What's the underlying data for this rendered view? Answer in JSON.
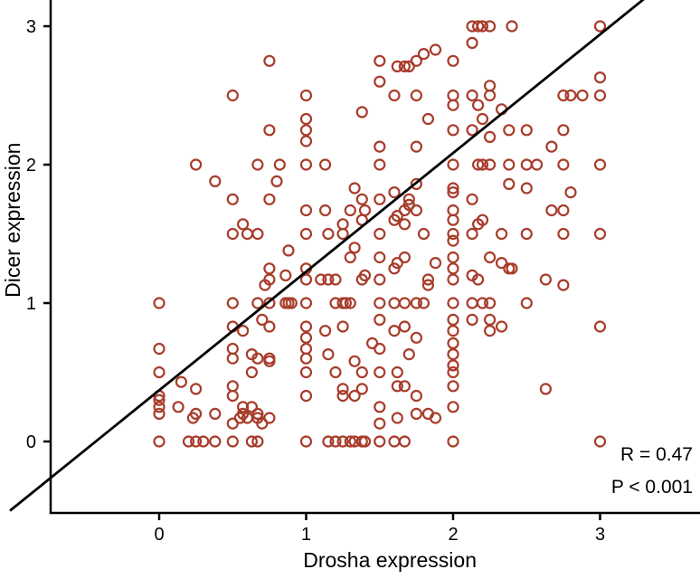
{
  "chart_data": {
    "type": "scatter",
    "title": "",
    "xlabel": "Drosha expression",
    "ylabel": "Dicer expression",
    "xlim": [
      -0.7,
      3.7
    ],
    "ylim": [
      -0.5,
      3.15
    ],
    "xticks": [
      0,
      1,
      2,
      3
    ],
    "yticks": [
      0,
      1,
      2,
      3
    ],
    "grid": false,
    "annotations": [
      "R = 0.47",
      "P < 0.001"
    ],
    "point_color": "#a83c2b",
    "line_color": "#000000",
    "fit_line": {
      "slope": 0.857,
      "intercept": 0.37
    },
    "points": [
      [
        0,
        1
      ],
      [
        0,
        0.67
      ],
      [
        0,
        0.5
      ],
      [
        0,
        0.33
      ],
      [
        0,
        0.3
      ],
      [
        0,
        0.25
      ],
      [
        0,
        0.2
      ],
      [
        0,
        0
      ],
      [
        0.15,
        0.43
      ],
      [
        0.13,
        0.25
      ],
      [
        0.2,
        0
      ],
      [
        0.23,
        0.17
      ],
      [
        0.25,
        0.38
      ],
      [
        0.25,
        0.2
      ],
      [
        0.25,
        0
      ],
      [
        0.25,
        2
      ],
      [
        0.3,
        0
      ],
      [
        0.38,
        0
      ],
      [
        0.38,
        0.2
      ],
      [
        0.38,
        1.88
      ],
      [
        0.5,
        2.5
      ],
      [
        0.5,
        1.75
      ],
      [
        0.5,
        1.5
      ],
      [
        0.5,
        1
      ],
      [
        0.5,
        0.83
      ],
      [
        0.5,
        0.67
      ],
      [
        0.5,
        0.6
      ],
      [
        0.5,
        0.4
      ],
      [
        0.5,
        0.33
      ],
      [
        0.5,
        0.13
      ],
      [
        0.5,
        0
      ],
      [
        0.55,
        0.17
      ],
      [
        0.57,
        1.57
      ],
      [
        0.57,
        0.8
      ],
      [
        0.57,
        0.25
      ],
      [
        0.57,
        0.2
      ],
      [
        0.6,
        1.5
      ],
      [
        0.6,
        0.17
      ],
      [
        0.63,
        0.63
      ],
      [
        0.63,
        0.5
      ],
      [
        0.63,
        0.25
      ],
      [
        0.63,
        0
      ],
      [
        0.67,
        2
      ],
      [
        0.67,
        1.5
      ],
      [
        0.67,
        1
      ],
      [
        0.67,
        0.6
      ],
      [
        0.67,
        0.2
      ],
      [
        0.67,
        0.17
      ],
      [
        0.67,
        0
      ],
      [
        0.7,
        0.88
      ],
      [
        0.7,
        0.13
      ],
      [
        0.75,
        2.75
      ],
      [
        0.75,
        2.25
      ],
      [
        0.75,
        1.75
      ],
      [
        0.75,
        1.25
      ],
      [
        0.75,
        1.17
      ],
      [
        0.75,
        1
      ],
      [
        0.75,
        0.83
      ],
      [
        0.75,
        0.6
      ],
      [
        0.75,
        0.58
      ],
      [
        0.75,
        0.17
      ],
      [
        0.72,
        1.13
      ],
      [
        0.8,
        1.88
      ],
      [
        0.82,
        2
      ],
      [
        0.86,
        1.2
      ],
      [
        0.86,
        1
      ],
      [
        0.88,
        1.38
      ],
      [
        0.88,
        1
      ],
      [
        0.9,
        1
      ],
      [
        1,
        2.5
      ],
      [
        1,
        2.33
      ],
      [
        1,
        2.25
      ],
      [
        1,
        2.17
      ],
      [
        1,
        2
      ],
      [
        1,
        1.67
      ],
      [
        1,
        1.5
      ],
      [
        1,
        1.25
      ],
      [
        1,
        1.17
      ],
      [
        1,
        1
      ],
      [
        1,
        0.83
      ],
      [
        1,
        0.75
      ],
      [
        1,
        0.67
      ],
      [
        1,
        0.6
      ],
      [
        1,
        0.5
      ],
      [
        1,
        0.33
      ],
      [
        1,
        0
      ],
      [
        1.1,
        1.17
      ],
      [
        1.13,
        2
      ],
      [
        1.13,
        1.67
      ],
      [
        1.13,
        0.8
      ],
      [
        1.15,
        1.5
      ],
      [
        1.15,
        1.17
      ],
      [
        1.15,
        0.63
      ],
      [
        1.15,
        0
      ],
      [
        1.2,
        1.17
      ],
      [
        1.2,
        1
      ],
      [
        1.2,
        0.5
      ],
      [
        1.2,
        0
      ],
      [
        1.25,
        1.57
      ],
      [
        1.25,
        1.5
      ],
      [
        1.25,
        1
      ],
      [
        1.25,
        0.83
      ],
      [
        1.25,
        0.38
      ],
      [
        1.25,
        0.33
      ],
      [
        1.25,
        0
      ],
      [
        1.27,
        1
      ],
      [
        1.3,
        1.67
      ],
      [
        1.3,
        1.33
      ],
      [
        1.3,
        1
      ],
      [
        1.3,
        0
      ],
      [
        1.33,
        1.83
      ],
      [
        1.33,
        1.4
      ],
      [
        1.33,
        0.58
      ],
      [
        1.33,
        0.33
      ],
      [
        1.33,
        0
      ],
      [
        1.38,
        2.38
      ],
      [
        1.38,
        1.75
      ],
      [
        1.38,
        1.6
      ],
      [
        1.38,
        1.17
      ],
      [
        1.38,
        0.5
      ],
      [
        1.38,
        0.38
      ],
      [
        1.38,
        0
      ],
      [
        1.4,
        1.67
      ],
      [
        1.4,
        1.2
      ],
      [
        1.4,
        0
      ],
      [
        1.45,
        0.71
      ],
      [
        1.5,
        2.75
      ],
      [
        1.5,
        2.6
      ],
      [
        1.5,
        2.13
      ],
      [
        1.5,
        2
      ],
      [
        1.5,
        1.75
      ],
      [
        1.5,
        1.5
      ],
      [
        1.5,
        1.33
      ],
      [
        1.5,
        1.17
      ],
      [
        1.5,
        1
      ],
      [
        1.5,
        0.88
      ],
      [
        1.5,
        0.67
      ],
      [
        1.5,
        0.5
      ],
      [
        1.5,
        0.25
      ],
      [
        1.5,
        0.13
      ],
      [
        1.5,
        0
      ],
      [
        1.6,
        2.5
      ],
      [
        1.6,
        1.8
      ],
      [
        1.6,
        1.6
      ],
      [
        1.6,
        1.25
      ],
      [
        1.6,
        1
      ],
      [
        1.6,
        0.8
      ],
      [
        1.6,
        0
      ],
      [
        1.62,
        2.71
      ],
      [
        1.62,
        1.63
      ],
      [
        1.62,
        1.29
      ],
      [
        1.62,
        0.5
      ],
      [
        1.62,
        0.4
      ],
      [
        1.62,
        0.17
      ],
      [
        1.67,
        2.71
      ],
      [
        1.67,
        1.67
      ],
      [
        1.67,
        1.57
      ],
      [
        1.67,
        1.33
      ],
      [
        1.67,
        1
      ],
      [
        1.67,
        0.83
      ],
      [
        1.67,
        0.4
      ],
      [
        1.67,
        0
      ],
      [
        1.7,
        2.71
      ],
      [
        1.7,
        1.75
      ],
      [
        1.7,
        1.71
      ],
      [
        1.7,
        0.63
      ],
      [
        1.75,
        2.75
      ],
      [
        1.75,
        2.5
      ],
      [
        1.75,
        2.13
      ],
      [
        1.75,
        1.86
      ],
      [
        1.75,
        1.67
      ],
      [
        1.75,
        1
      ],
      [
        1.75,
        0.75
      ],
      [
        1.75,
        0.33
      ],
      [
        1.75,
        0.2
      ],
      [
        1.8,
        2.8
      ],
      [
        1.8,
        1.5
      ],
      [
        1.8,
        1
      ],
      [
        1.83,
        2.33
      ],
      [
        1.83,
        1.17
      ],
      [
        1.83,
        1.13
      ],
      [
        1.83,
        0.2
      ],
      [
        1.88,
        2.83
      ],
      [
        1.88,
        1.29
      ],
      [
        1.88,
        0.17
      ],
      [
        2,
        2.75
      ],
      [
        2,
        2.5
      ],
      [
        2,
        2.43
      ],
      [
        2,
        2.25
      ],
      [
        2,
        2
      ],
      [
        2,
        1.83
      ],
      [
        2,
        1.8
      ],
      [
        2,
        1.67
      ],
      [
        2,
        1.6
      ],
      [
        2,
        1.5
      ],
      [
        2,
        1.45
      ],
      [
        2,
        1.33
      ],
      [
        2,
        1.25
      ],
      [
        2,
        1.17
      ],
      [
        2,
        1
      ],
      [
        2,
        0.88
      ],
      [
        2,
        0.8
      ],
      [
        2,
        0.71
      ],
      [
        2,
        0.63
      ],
      [
        2,
        0.55
      ],
      [
        2,
        0.5
      ],
      [
        2,
        0.4
      ],
      [
        2,
        0.25
      ],
      [
        2,
        0
      ],
      [
        2.13,
        3
      ],
      [
        2.13,
        2.88
      ],
      [
        2.13,
        2.5
      ],
      [
        2.13,
        2.25
      ],
      [
        2.13,
        1.75
      ],
      [
        2.13,
        1.5
      ],
      [
        2.13,
        1.2
      ],
      [
        2.13,
        1
      ],
      [
        2.13,
        0.88
      ],
      [
        2.17,
        3
      ],
      [
        2.17,
        2.43
      ],
      [
        2.17,
        2
      ],
      [
        2.17,
        1.57
      ],
      [
        2.17,
        1.17
      ],
      [
        2.2,
        3
      ],
      [
        2.2,
        2.33
      ],
      [
        2.2,
        2
      ],
      [
        2.2,
        1.6
      ],
      [
        2.2,
        1
      ],
      [
        2.25,
        3
      ],
      [
        2.25,
        2.57
      ],
      [
        2.25,
        2.5
      ],
      [
        2.25,
        2.2
      ],
      [
        2.25,
        2
      ],
      [
        2.25,
        1.33
      ],
      [
        2.25,
        1
      ],
      [
        2.25,
        0.88
      ],
      [
        2.25,
        0.8
      ],
      [
        2.33,
        2.4
      ],
      [
        2.33,
        1.5
      ],
      [
        2.33,
        1.29
      ],
      [
        2.33,
        0.83
      ],
      [
        2.38,
        2.25
      ],
      [
        2.38,
        2
      ],
      [
        2.38,
        1.86
      ],
      [
        2.38,
        1.25
      ],
      [
        2.4,
        3
      ],
      [
        2.4,
        1.25
      ],
      [
        2.5,
        2.25
      ],
      [
        2.5,
        2
      ],
      [
        2.5,
        1.83
      ],
      [
        2.5,
        1.5
      ],
      [
        2.5,
        1
      ],
      [
        2.57,
        2
      ],
      [
        2.63,
        1.17
      ],
      [
        2.63,
        0.38
      ],
      [
        2.67,
        2.13
      ],
      [
        2.67,
        1.67
      ],
      [
        2.75,
        2.5
      ],
      [
        2.75,
        2.25
      ],
      [
        2.75,
        2
      ],
      [
        2.75,
        1.67
      ],
      [
        2.75,
        1.5
      ],
      [
        2.75,
        1.13
      ],
      [
        2.8,
        1.8
      ],
      [
        2.8,
        2.5
      ],
      [
        2.88,
        2.5
      ],
      [
        3,
        3
      ],
      [
        3,
        2.63
      ],
      [
        3,
        2.5
      ],
      [
        3,
        2
      ],
      [
        3,
        1.5
      ],
      [
        3,
        0.83
      ],
      [
        3,
        0
      ]
    ]
  }
}
